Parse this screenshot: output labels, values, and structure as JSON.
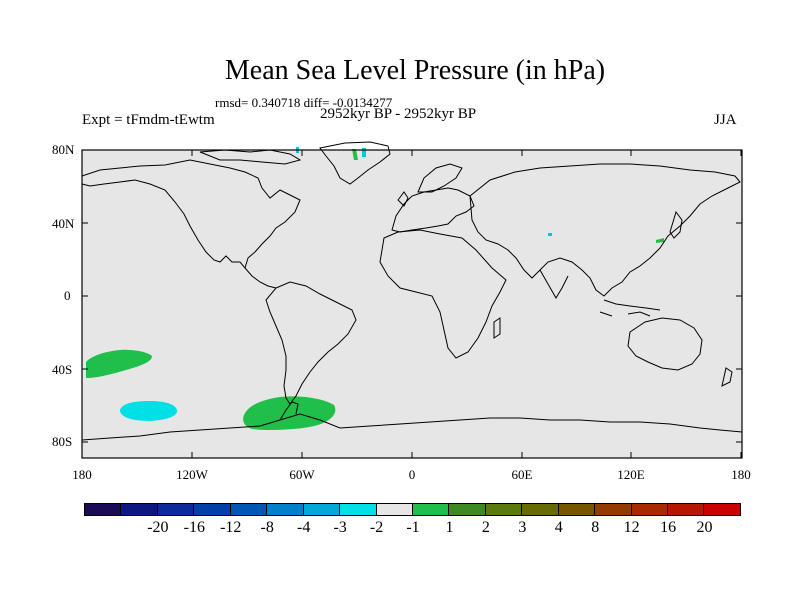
{
  "title": "Mean Sea Level Pressure (in hPa)",
  "stats": "rmsd= 0.340718  diff= -0.0134277",
  "period": "2952kyr BP - 2952kyr BP",
  "expt": "Expt = tFmdm-tEwtm",
  "season": "JJA",
  "lat_labels": [
    "80N",
    "40N",
    "0",
    "40S",
    "80S"
  ],
  "lon_labels": [
    "180",
    "120W",
    "60W",
    "0",
    "60E",
    "120E",
    "180"
  ],
  "colorbar": {
    "colors": [
      "#1b0a55",
      "#0e1680",
      "#0c2a99",
      "#0040a8",
      "#0056b3",
      "#0080c8",
      "#00a8d6",
      "#00e0e6",
      "#e6e6e6",
      "#1fbf4a",
      "#3d8a23",
      "#5a7a10",
      "#6a6a05",
      "#7a5500",
      "#943c00",
      "#a82b00",
      "#b81600",
      "#cc0000"
    ],
    "labels": [
      "-20",
      "-16",
      "-12",
      "-8",
      "-4",
      "-3",
      "-2",
      "-1",
      "1",
      "2",
      "3",
      "4",
      "8",
      "12",
      "16",
      "20"
    ]
  },
  "map": {
    "ocean_color": "#e6e6e6",
    "anomalies": [
      {
        "name": "south-pacific-positive",
        "lon": -165,
        "lat": -37,
        "value": 1.5,
        "color": "#1fbf4a"
      },
      {
        "name": "south-pacific-negative",
        "lon": -133,
        "lat": -63,
        "value": -1.5,
        "color": "#00e0e6"
      },
      {
        "name": "drake-passage-positive",
        "lon": -62,
        "lat": -63,
        "value": 1.5,
        "color": "#1fbf4a"
      }
    ]
  }
}
